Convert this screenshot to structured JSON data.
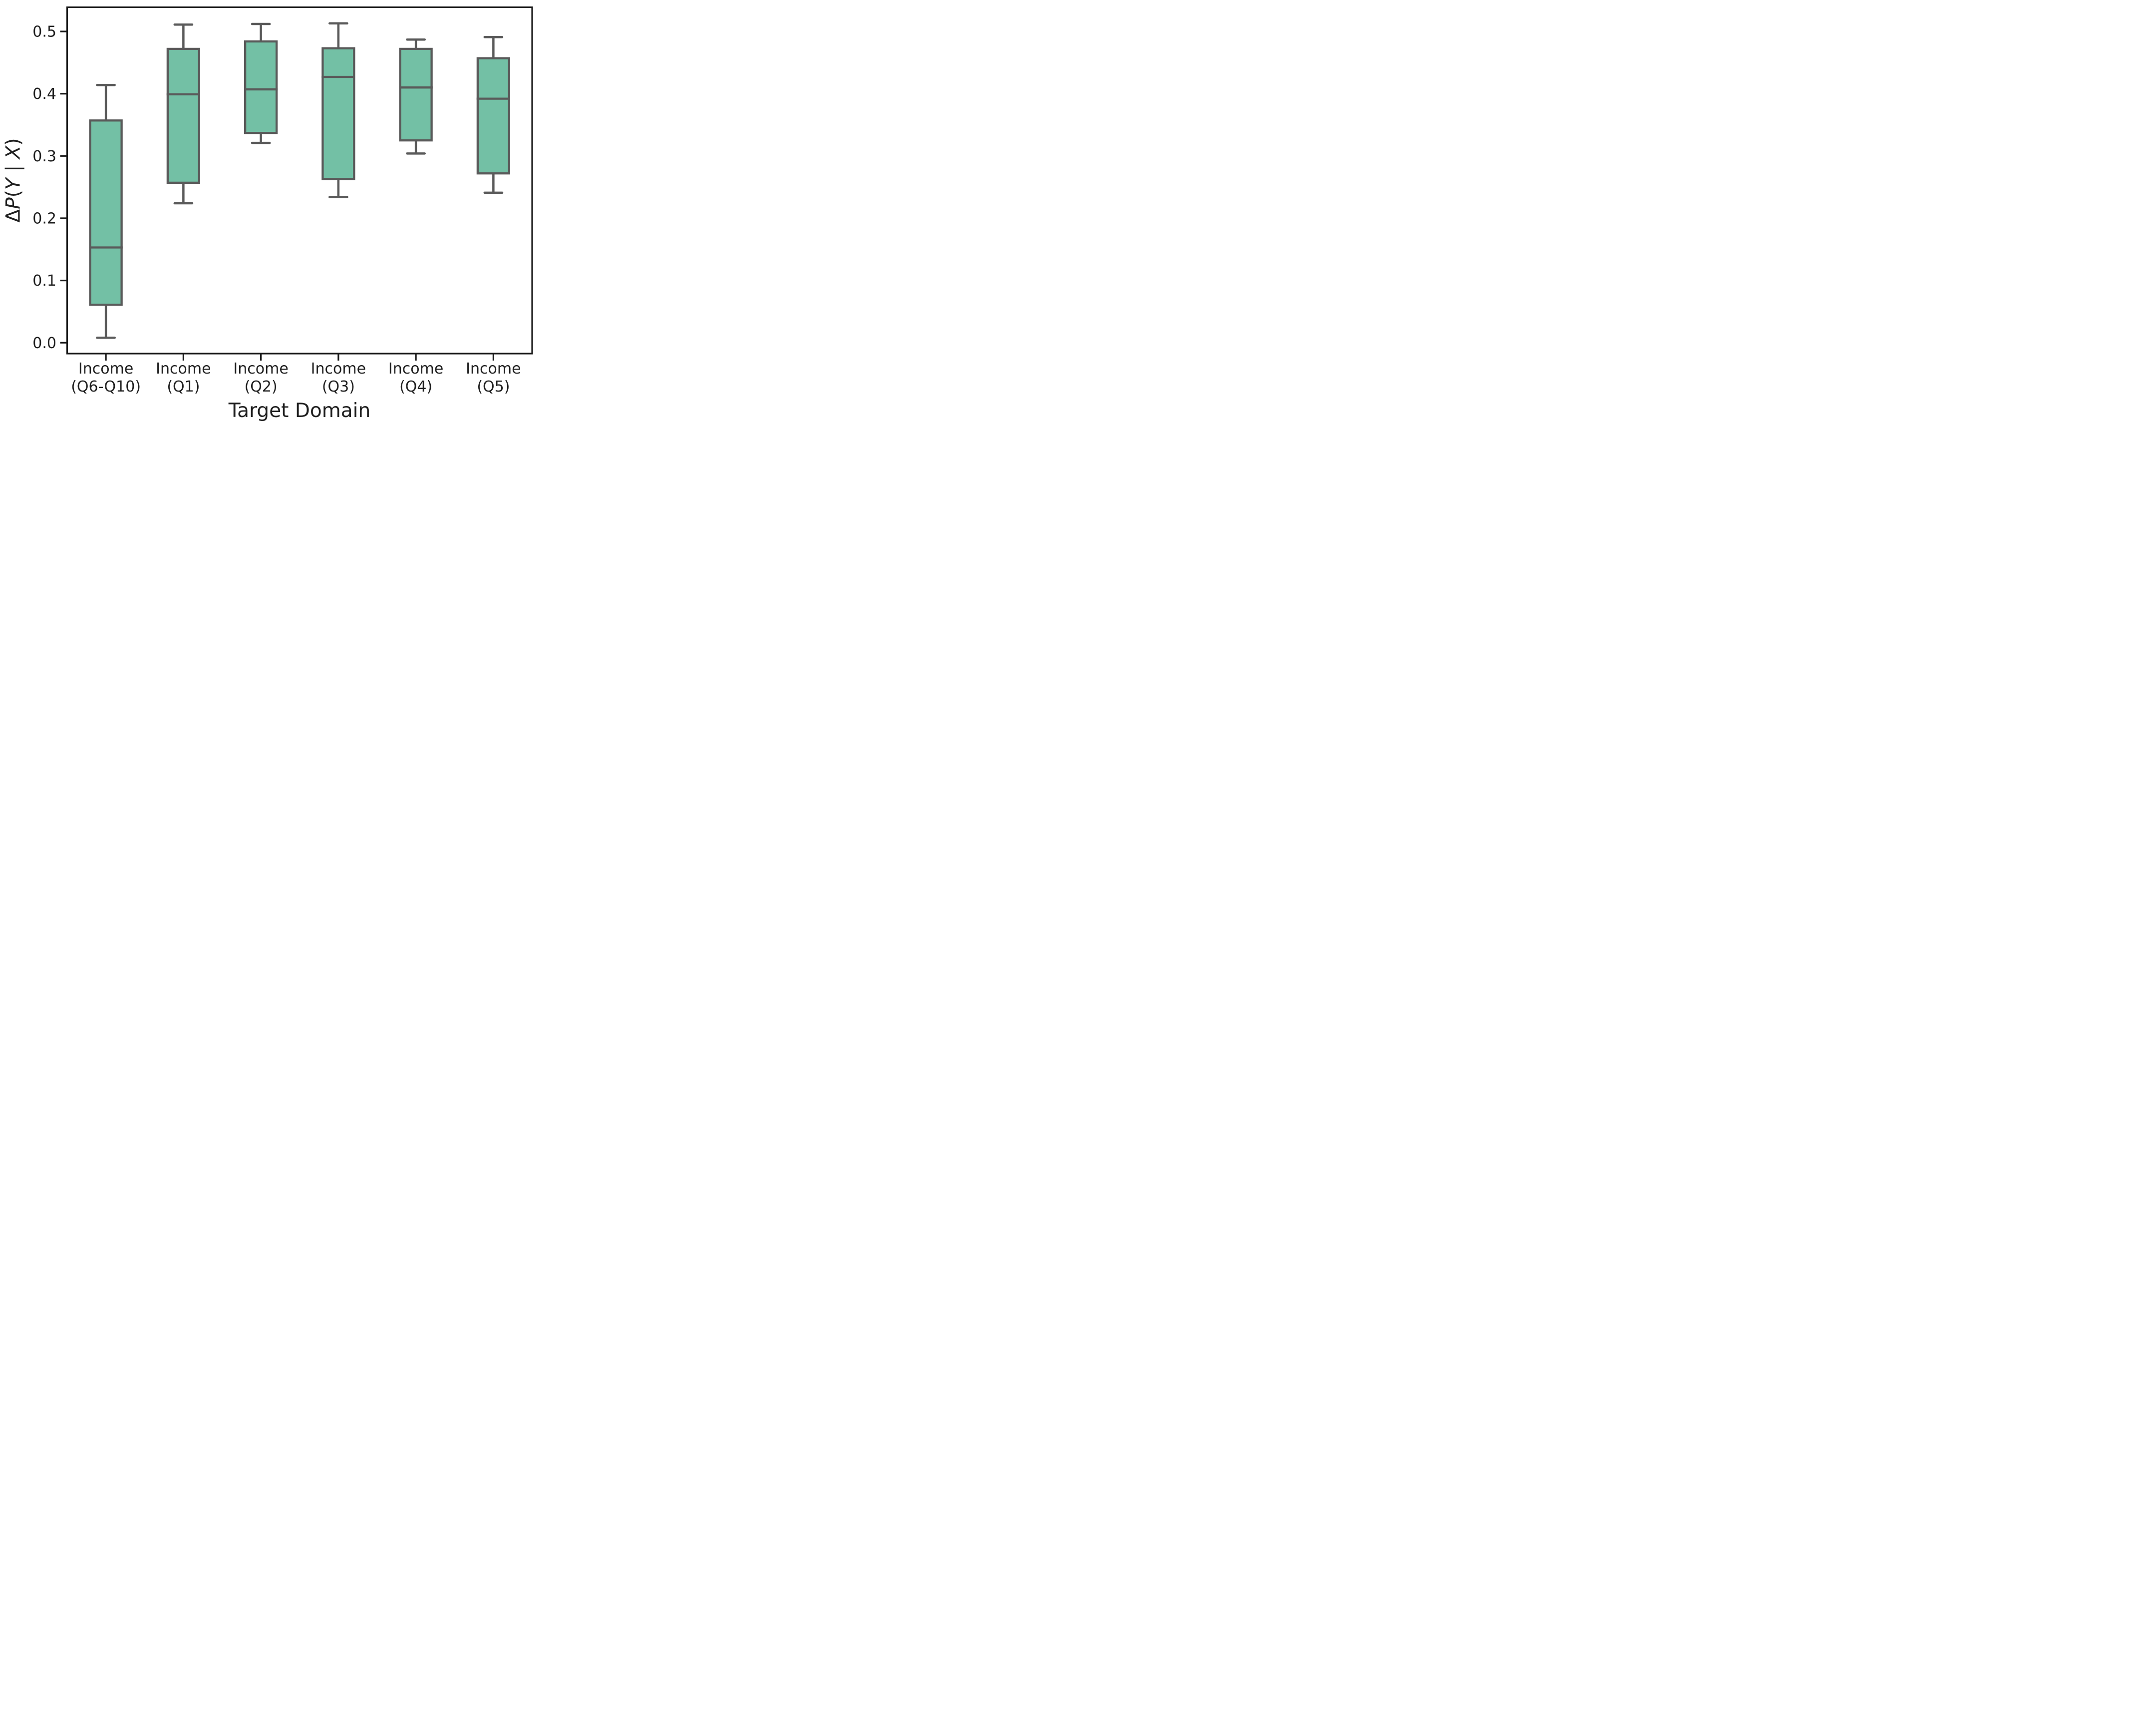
{
  "figure": {
    "background": "#ffffff",
    "ylabel_parts": [
      {
        "text": "Δ",
        "italic": false
      },
      {
        "text": "P",
        "italic": true
      },
      {
        "text": "(",
        "italic": false
      },
      {
        "text": "Y",
        "italic": true
      },
      {
        "text": " | ",
        "italic": false
      },
      {
        "text": "X",
        "italic": true
      },
      {
        "text": ")",
        "italic": false
      }
    ]
  },
  "chart_data": {
    "type": "box",
    "title": "",
    "xlabel": "Target Domain",
    "ylabel": "ΔP(Y | X)",
    "categories": [
      "Income (Q6-Q10)",
      "Income (Q1)",
      "Income (Q2)",
      "Income (Q3)",
      "Income (Q4)",
      "Income (Q5)"
    ],
    "category_label_lines": [
      [
        "Income",
        "(Q6-Q10)"
      ],
      [
        "Income",
        "(Q1)"
      ],
      [
        "Income",
        "(Q2)"
      ],
      [
        "Income",
        "(Q3)"
      ],
      [
        "Income",
        "(Q4)"
      ],
      [
        "Income",
        "(Q5)"
      ]
    ],
    "boxes": [
      {
        "label": "Income (Q6-Q10)",
        "whisker_low": 0.008,
        "q1": 0.061,
        "median": 0.153,
        "q3": 0.357,
        "whisker_high": 0.414
      },
      {
        "label": "Income (Q1)",
        "whisker_low": 0.224,
        "q1": 0.257,
        "median": 0.399,
        "q3": 0.472,
        "whisker_high": 0.511
      },
      {
        "label": "Income (Q2)",
        "whisker_low": 0.321,
        "q1": 0.337,
        "median": 0.407,
        "q3": 0.484,
        "whisker_high": 0.512
      },
      {
        "label": "Income (Q3)",
        "whisker_low": 0.234,
        "q1": 0.263,
        "median": 0.427,
        "q3": 0.473,
        "whisker_high": 0.513
      },
      {
        "label": "Income (Q4)",
        "whisker_low": 0.304,
        "q1": 0.325,
        "median": 0.41,
        "q3": 0.472,
        "whisker_high": 0.487
      },
      {
        "label": "Income (Q5)",
        "whisker_low": 0.241,
        "q1": 0.272,
        "median": 0.392,
        "q3": 0.457,
        "whisker_high": 0.491
      }
    ],
    "yticks": [
      0.0,
      0.1,
      0.2,
      0.3,
      0.4,
      0.5
    ],
    "ytick_labels": [
      "0.0",
      "0.1",
      "0.2",
      "0.3",
      "0.4",
      "0.5"
    ],
    "ylim": [
      -0.017,
      0.539
    ],
    "grid": false,
    "legend": null,
    "colors": {
      "box_fill": "#73c0a5",
      "box_edge": "#5a5a5a",
      "spine": "#1a1a1a",
      "text": "#1f1f1f"
    }
  }
}
